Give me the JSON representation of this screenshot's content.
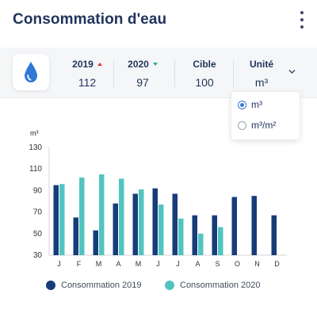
{
  "header": {
    "title": "Consommation d'eau"
  },
  "stats": [
    {
      "label": "2019",
      "value": "112",
      "trend": "up",
      "trend_color": "#d73a3a"
    },
    {
      "label": "2020",
      "value": "97",
      "trend": "down",
      "trend_color": "#2aa89a"
    },
    {
      "label": "Cible",
      "value": "100"
    }
  ],
  "unit": {
    "label": "Unité",
    "selected": "m³",
    "options": [
      {
        "label": "m³",
        "selected": true
      },
      {
        "label": "m³/m²",
        "selected": false
      }
    ]
  },
  "icons": {
    "drop": "water-drop-icon",
    "menu": "kebab-menu-icon",
    "dropdown": "chevron-down-icon"
  },
  "colors": {
    "series_2019": "#173d78",
    "series_2020": "#52c4c0",
    "drop": "#2f78d6",
    "title": "#22345c"
  },
  "chart_data": {
    "type": "bar",
    "ylabel": "m³",
    "ylim": [
      30,
      130
    ],
    "yticks": [
      130,
      110,
      90,
      70,
      50,
      30
    ],
    "categories": [
      "J",
      "F",
      "M",
      "A",
      "M",
      "J",
      "J",
      "A",
      "S",
      "O",
      "N",
      "D"
    ],
    "series": [
      {
        "name": "Consommation 2019",
        "color": "#173d78",
        "values": [
          95,
          65,
          53,
          78,
          87,
          92,
          87,
          67,
          67,
          84,
          85,
          67
        ]
      },
      {
        "name": "Consommation 2020",
        "color": "#52c4c0",
        "values": [
          96,
          102,
          105,
          101,
          91,
          77,
          64,
          50,
          56,
          null,
          null,
          null
        ]
      }
    ],
    "grid": false,
    "legend": "bottom"
  }
}
